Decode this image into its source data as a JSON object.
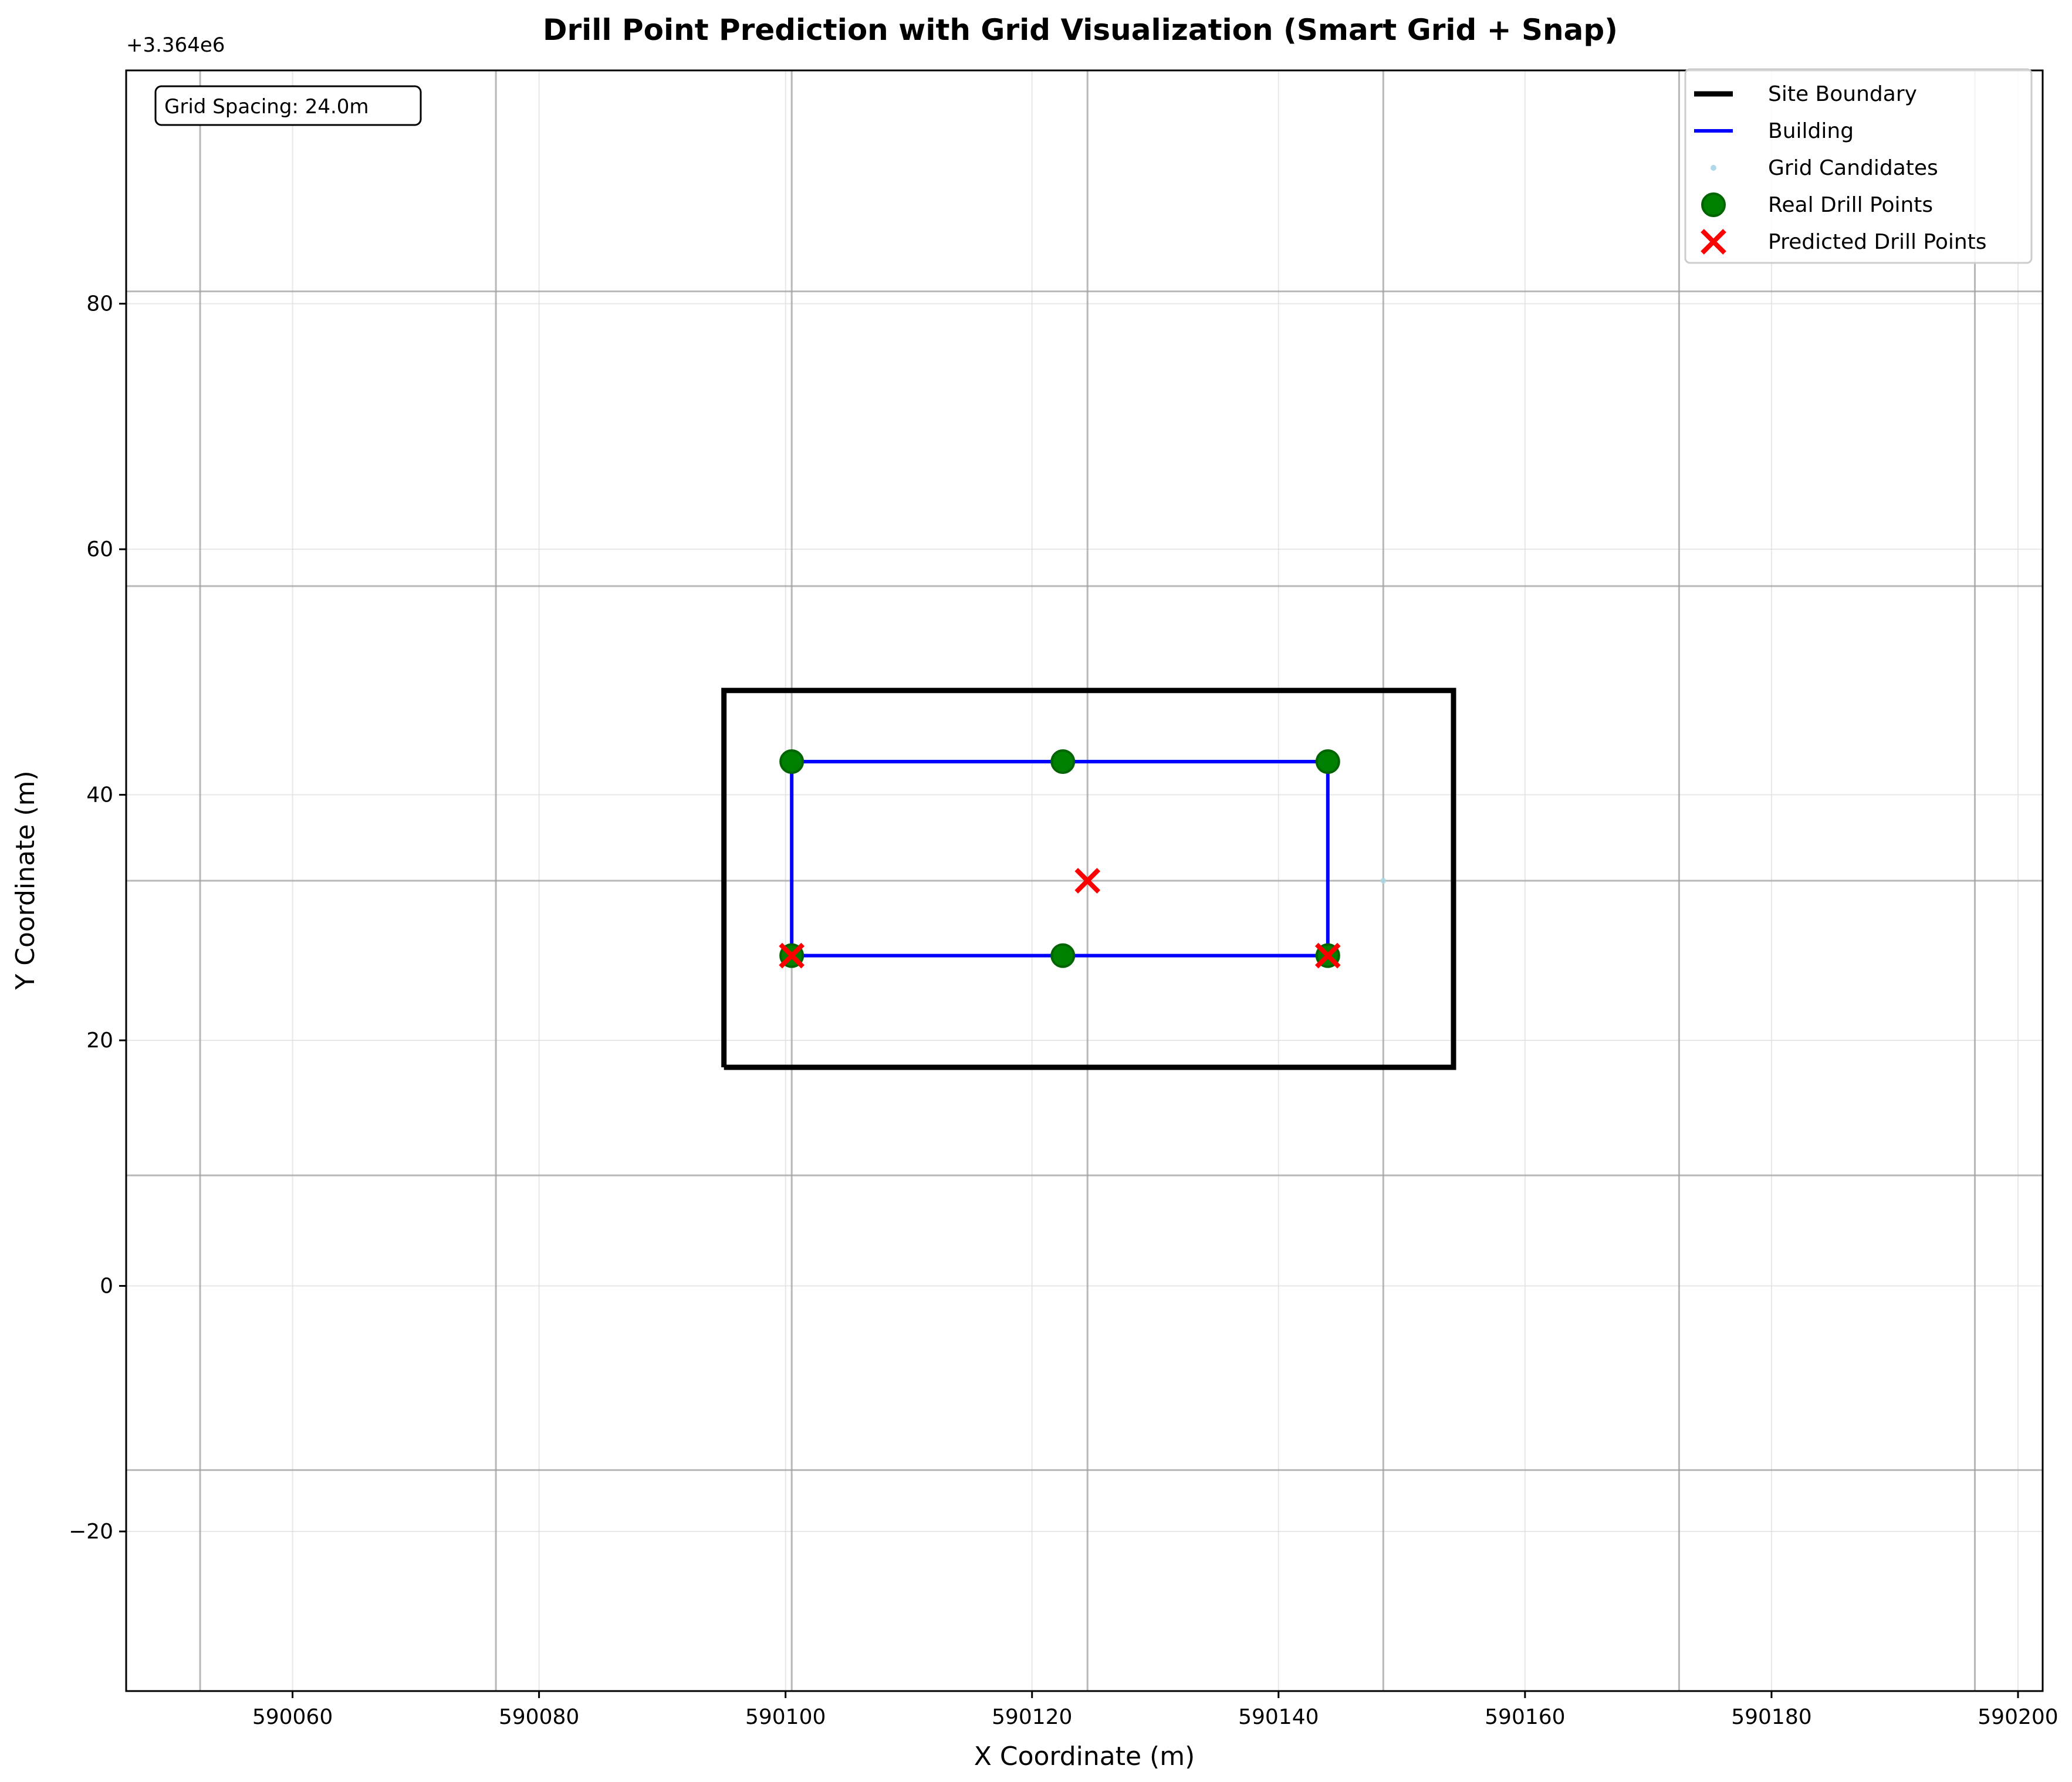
{
  "chart_data": {
    "type": "scatter",
    "title": "Drill Point Prediction with Grid Visualization (Smart Grid + Snap)",
    "xlabel": "X Coordinate (m)",
    "ylabel": "Y Coordinate (m)",
    "y_offset_label": "+3.364e6",
    "xlim": [
      590046.5,
      590202.0
    ],
    "ylim": [
      -33,
      99
    ],
    "x_ticks": [
      590060,
      590080,
      590100,
      590120,
      590140,
      590160,
      590180,
      590200
    ],
    "y_ticks": [
      -20,
      0,
      20,
      40,
      60,
      80
    ],
    "annotation": "Grid Spacing: 24.0m",
    "grid": true,
    "grid_lines_x": [
      590052.5,
      590076.5,
      590100.5,
      590124.5,
      590148.5,
      590172.5,
      590196.5
    ],
    "grid_lines_y": [
      -15,
      9,
      33,
      57,
      81
    ],
    "legend_position": "top-right",
    "legend": [
      {
        "label": "Site Boundary",
        "kind": "line",
        "color": "#000000"
      },
      {
        "label": "Building",
        "kind": "line",
        "color": "#0000ff"
      },
      {
        "label": "Grid Candidates",
        "kind": "dot",
        "color": "#add8e6"
      },
      {
        "label": "Real Drill Points",
        "kind": "circle",
        "color": "#008000"
      },
      {
        "label": "Predicted Drill Points",
        "kind": "x",
        "color": "#ff0000"
      }
    ],
    "series": [
      {
        "name": "Site Boundary",
        "color": "#000000",
        "points": [
          [
            590095.0,
            17.8
          ],
          [
            590154.2,
            17.8
          ],
          [
            590154.2,
            48.5
          ],
          [
            590095.0,
            48.5
          ],
          [
            590095.0,
            17.8
          ]
        ]
      },
      {
        "name": "Building",
        "color": "#0000ff",
        "points": [
          [
            590100.5,
            26.9
          ],
          [
            590144.0,
            26.9
          ],
          [
            590144.0,
            42.7
          ],
          [
            590100.5,
            42.7
          ],
          [
            590100.5,
            26.9
          ]
        ]
      },
      {
        "name": "Grid Candidates",
        "color": "#add8e6",
        "points": [
          [
            590148.5,
            33.0
          ]
        ]
      },
      {
        "name": "Real Drill Points",
        "color": "#008000",
        "points": [
          [
            590100.5,
            42.7
          ],
          [
            590122.5,
            42.7
          ],
          [
            590144.0,
            42.7
          ],
          [
            590100.5,
            26.9
          ],
          [
            590122.5,
            26.9
          ],
          [
            590144.0,
            26.9
          ]
        ]
      },
      {
        "name": "Predicted Drill Points",
        "color": "#ff0000",
        "points": [
          [
            590124.5,
            33.0
          ],
          [
            590100.5,
            26.9
          ],
          [
            590144.0,
            26.9
          ]
        ]
      }
    ]
  }
}
